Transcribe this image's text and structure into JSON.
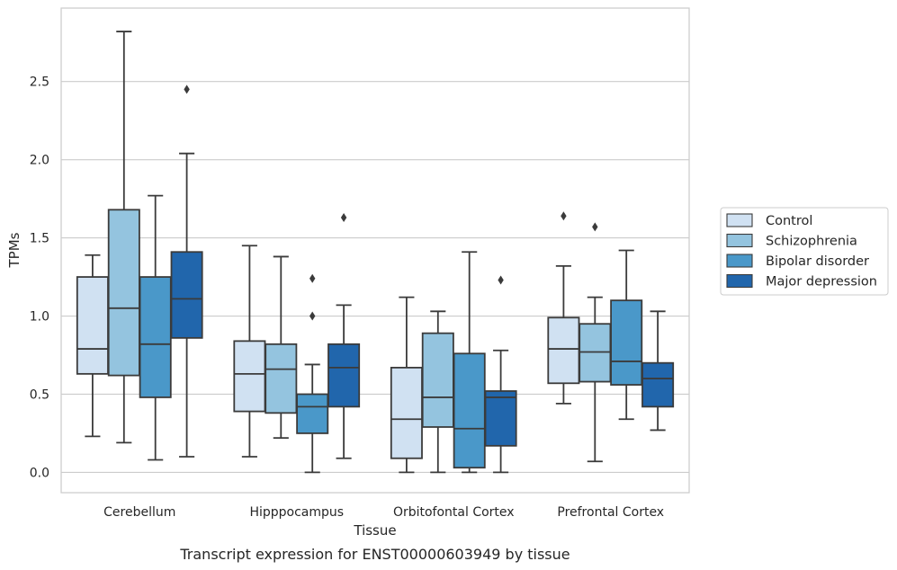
{
  "chart_data": {
    "type": "boxplot",
    "title": "",
    "caption": "Transcript expression for ENST00000603949 by tissue",
    "xlabel": "Tissue",
    "ylabel": "TPMs",
    "ylim": [
      -0.13,
      2.97
    ],
    "yticks": [
      0.0,
      0.5,
      1.0,
      1.5,
      2.0,
      2.5
    ],
    "grid": "horizontal",
    "legend_position": "right",
    "categories": [
      "Cerebellum",
      "Hipppocampus",
      "Orbitofontal Cortex",
      "Prefrontal Cortex"
    ],
    "series": [
      {
        "name": "Control",
        "color": "#d0e1f2",
        "boxes": [
          {
            "whislo": 0.23,
            "q1": 0.63,
            "med": 0.79,
            "q3": 1.25,
            "whishi": 1.39,
            "fliers": []
          },
          {
            "whislo": 0.1,
            "q1": 0.39,
            "med": 0.63,
            "q3": 0.84,
            "whishi": 1.45,
            "fliers": []
          },
          {
            "whislo": 0.0,
            "q1": 0.09,
            "med": 0.34,
            "q3": 0.67,
            "whishi": 1.12,
            "fliers": []
          },
          {
            "whislo": 0.44,
            "q1": 0.57,
            "med": 0.79,
            "q3": 0.99,
            "whishi": 1.32,
            "fliers": [
              1.64
            ]
          }
        ]
      },
      {
        "name": "Schizophrenia",
        "color": "#94c4df",
        "boxes": [
          {
            "whislo": 0.19,
            "q1": 0.62,
            "med": 1.05,
            "q3": 1.68,
            "whishi": 2.82,
            "fliers": []
          },
          {
            "whislo": 0.22,
            "q1": 0.38,
            "med": 0.66,
            "q3": 0.82,
            "whishi": 1.38,
            "fliers": []
          },
          {
            "whislo": 0.0,
            "q1": 0.29,
            "med": 0.48,
            "q3": 0.89,
            "whishi": 1.03,
            "fliers": []
          },
          {
            "whislo": 0.07,
            "q1": 0.58,
            "med": 0.77,
            "q3": 0.95,
            "whishi": 1.12,
            "fliers": [
              1.57
            ]
          }
        ]
      },
      {
        "name": "Bipolar disorder",
        "color": "#4a98c9",
        "boxes": [
          {
            "whislo": 0.08,
            "q1": 0.48,
            "med": 0.82,
            "q3": 1.25,
            "whishi": 1.77,
            "fliers": []
          },
          {
            "whislo": 0.0,
            "q1": 0.25,
            "med": 0.42,
            "q3": 0.5,
            "whishi": 0.69,
            "fliers": [
              1.0,
              1.24
            ]
          },
          {
            "whislo": 0.0,
            "q1": 0.03,
            "med": 0.28,
            "q3": 0.76,
            "whishi": 1.41,
            "fliers": []
          },
          {
            "whislo": 0.34,
            "q1": 0.56,
            "med": 0.71,
            "q3": 1.1,
            "whishi": 1.42,
            "fliers": []
          }
        ]
      },
      {
        "name": "Major depression",
        "color": "#2166ac",
        "boxes": [
          {
            "whislo": 0.1,
            "q1": 0.86,
            "med": 1.11,
            "q3": 1.41,
            "whishi": 2.04,
            "fliers": [
              2.45
            ]
          },
          {
            "whislo": 0.09,
            "q1": 0.42,
            "med": 0.67,
            "q3": 0.82,
            "whishi": 1.07,
            "fliers": [
              1.63
            ]
          },
          {
            "whislo": 0.0,
            "q1": 0.17,
            "med": 0.48,
            "q3": 0.52,
            "whishi": 0.78,
            "fliers": [
              1.23
            ]
          },
          {
            "whislo": 0.27,
            "q1": 0.42,
            "med": 0.6,
            "q3": 0.7,
            "whishi": 1.03,
            "fliers": []
          }
        ]
      }
    ]
  }
}
